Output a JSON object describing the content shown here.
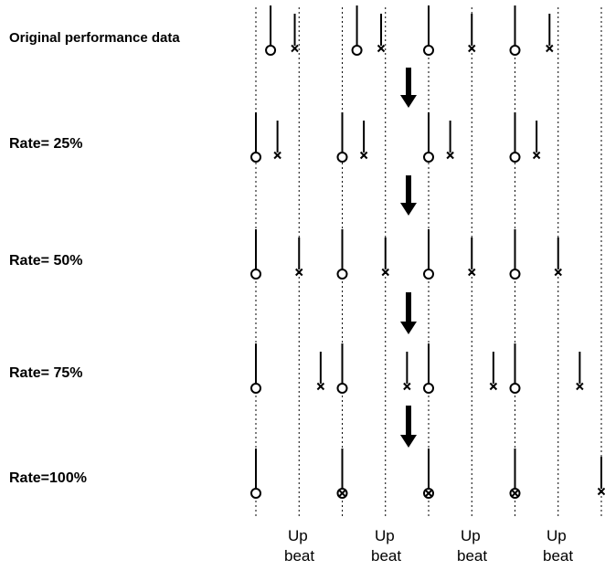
{
  "rows": [
    {
      "label": "Original performance data",
      "notes": [
        {
          "type": "o",
          "beat": 0.17
        },
        {
          "type": "x",
          "beat": 0.45
        },
        {
          "type": "o",
          "beat": 1.17
        },
        {
          "type": "x",
          "beat": 1.45
        },
        {
          "type": "o",
          "beat": 2.0
        },
        {
          "type": "x",
          "beat": 2.5
        },
        {
          "type": "o",
          "beat": 3.0
        },
        {
          "type": "x",
          "beat": 3.4
        }
      ]
    },
    {
      "label": "Rate=  25%",
      "notes": [
        {
          "type": "o",
          "beat": 0.0
        },
        {
          "type": "x",
          "beat": 0.25
        },
        {
          "type": "o",
          "beat": 1.0
        },
        {
          "type": "x",
          "beat": 1.25
        },
        {
          "type": "o",
          "beat": 2.0
        },
        {
          "type": "x",
          "beat": 2.25
        },
        {
          "type": "o",
          "beat": 3.0
        },
        {
          "type": "x",
          "beat": 3.25
        }
      ]
    },
    {
      "label": "Rate=  50%",
      "notes": [
        {
          "type": "o",
          "beat": 0.0
        },
        {
          "type": "x",
          "beat": 0.5
        },
        {
          "type": "o",
          "beat": 1.0
        },
        {
          "type": "x",
          "beat": 1.5
        },
        {
          "type": "o",
          "beat": 2.0
        },
        {
          "type": "x",
          "beat": 2.5
        },
        {
          "type": "o",
          "beat": 3.0
        },
        {
          "type": "x",
          "beat": 3.5
        }
      ]
    },
    {
      "label": "Rate=  75%",
      "notes": [
        {
          "type": "o",
          "beat": 0.0
        },
        {
          "type": "x",
          "beat": 0.75
        },
        {
          "type": "o",
          "beat": 1.0
        },
        {
          "type": "x",
          "beat": 1.75
        },
        {
          "type": "o",
          "beat": 2.0
        },
        {
          "type": "x",
          "beat": 2.75
        },
        {
          "type": "o",
          "beat": 3.0
        },
        {
          "type": "x",
          "beat": 3.75
        }
      ]
    },
    {
      "label": "Rate=100%",
      "notes": [
        {
          "type": "o",
          "beat": 0.0
        },
        {
          "type": "ox",
          "beat": 1.0
        },
        {
          "type": "ox",
          "beat": 2.0
        },
        {
          "type": "ox",
          "beat": 3.0
        },
        {
          "type": "x",
          "beat": 4.0
        }
      ]
    }
  ],
  "beat_labels": [
    {
      "line1": "Up",
      "line2": "beat"
    },
    {
      "line1": "Up",
      "line2": "beat"
    },
    {
      "line1": "Up",
      "line2": "beat"
    },
    {
      "line1": "Up",
      "line2": "beat"
    }
  ],
  "colors": {
    "ink": "#000000",
    "background": "#ffffff",
    "grid": "#000000"
  }
}
